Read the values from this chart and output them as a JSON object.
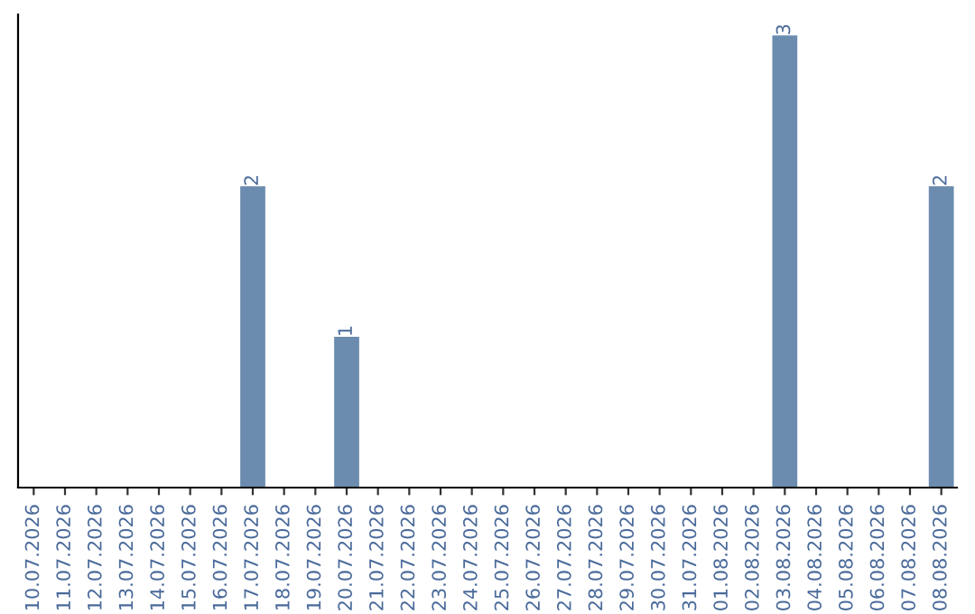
{
  "chart_data": {
    "type": "bar",
    "categories": [
      "10.07.2026",
      "11.07.2026",
      "12.07.2026",
      "13.07.2026",
      "14.07.2026",
      "15.07.2026",
      "16.07.2026",
      "17.07.2026",
      "18.07.2026",
      "19.07.2026",
      "20.07.2026",
      "21.07.2026",
      "22.07.2026",
      "23.07.2026",
      "24.07.2026",
      "25.07.2026",
      "26.07.2026",
      "27.07.2026",
      "28.07.2026",
      "29.07.2026",
      "30.07.2026",
      "31.07.2026",
      "01.08.2026",
      "02.08.2026",
      "03.08.2026",
      "04.08.2026",
      "05.08.2026",
      "06.08.2026",
      "07.08.2026",
      "08.08.2026"
    ],
    "values": [
      0,
      0,
      0,
      0,
      0,
      0,
      0,
      2,
      0,
      0,
      1,
      0,
      0,
      0,
      0,
      0,
      0,
      0,
      0,
      0,
      0,
      0,
      0,
      0,
      3,
      0,
      0,
      0,
      0,
      2
    ],
    "value_labels": [
      null,
      null,
      null,
      null,
      null,
      null,
      null,
      "2",
      null,
      null,
      "1",
      null,
      null,
      null,
      null,
      null,
      null,
      null,
      null,
      null,
      null,
      null,
      null,
      null,
      "3",
      null,
      null,
      null,
      null,
      "2"
    ],
    "color": "#6b8cae",
    "tick_labels": "x",
    "grid": false,
    "legend": false
  }
}
